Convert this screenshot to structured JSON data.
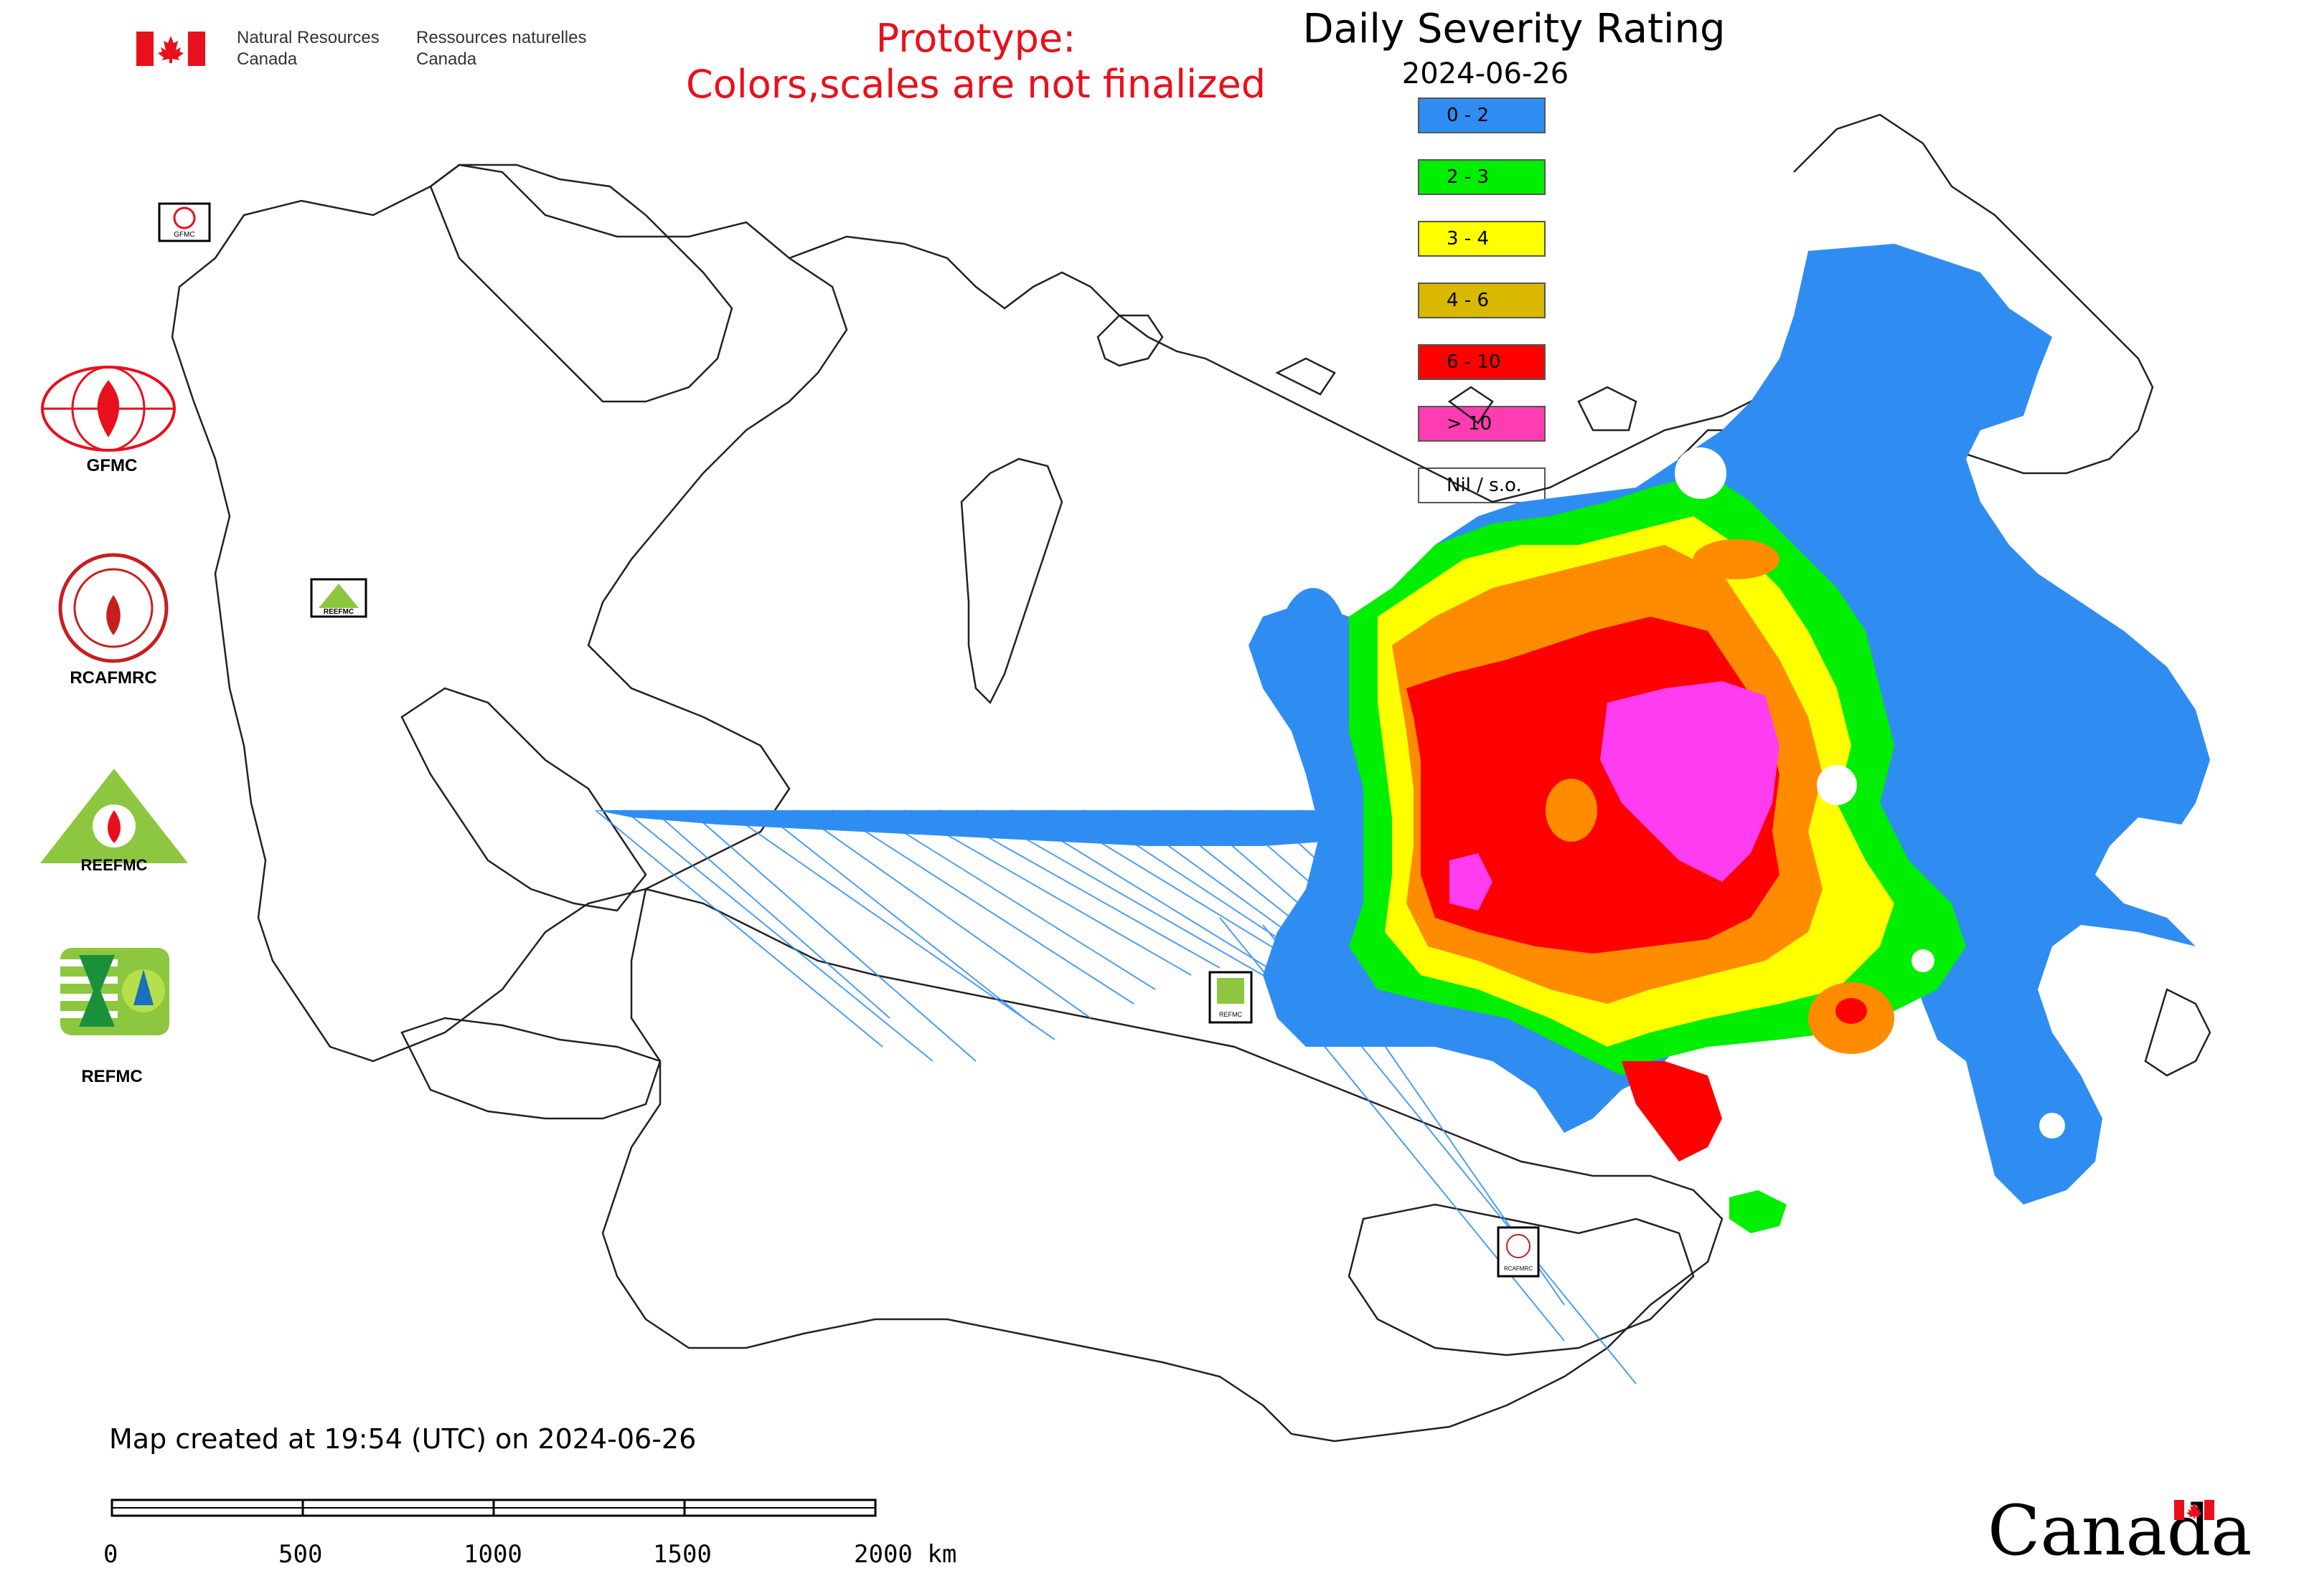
{
  "header": {
    "org_en_line1": "Natural Resources",
    "org_en_line2": "Canada",
    "org_fr_line1": "Ressources naturelles",
    "org_fr_line2": "Canada",
    "flag_icon": "canada-flag-icon",
    "flag_color": "#e8101c"
  },
  "prototype": {
    "line1": "Prototype:",
    "line2": "Colors,scales are not finalized",
    "color": "#e8101c"
  },
  "title": "Daily Severity Rating",
  "date": "2024-06-26",
  "legend": [
    {
      "label": "0 - 2",
      "color": "#2f8df2"
    },
    {
      "label": "2 - 3",
      "color": "#00ee00"
    },
    {
      "label": "3 - 4",
      "color": "#ffff00"
    },
    {
      "label": "4 - 6",
      "color": "#d9b800"
    },
    {
      "label": "6 - 10",
      "color": "#ff0000"
    },
    {
      "label": "> 10",
      "color": "#ff3db0"
    },
    {
      "label": "Nil / s.o.",
      "color": "#ffffff"
    }
  ],
  "logos": [
    {
      "label": "GFMC",
      "icon": "gfmc-logo-icon"
    },
    {
      "label": "RCAFMRC",
      "icon": "rcafmrc-logo-icon"
    },
    {
      "label": "REEFMC",
      "icon": "reefmc-logo-icon"
    },
    {
      "label": "REFMC",
      "icon": "refmc-logo-icon"
    }
  ],
  "map_markers": [
    {
      "label": "GFMC"
    },
    {
      "label": "REEFMC"
    },
    {
      "label": "REFMC"
    },
    {
      "label": "RCAFMRC"
    }
  ],
  "footer": {
    "created": "Map created at 19:54 (UTC) on 2024-06-26",
    "scale_ticks": [
      "0",
      "500",
      "1000",
      "1500",
      "2000 km"
    ],
    "wordmark": "Canada"
  }
}
